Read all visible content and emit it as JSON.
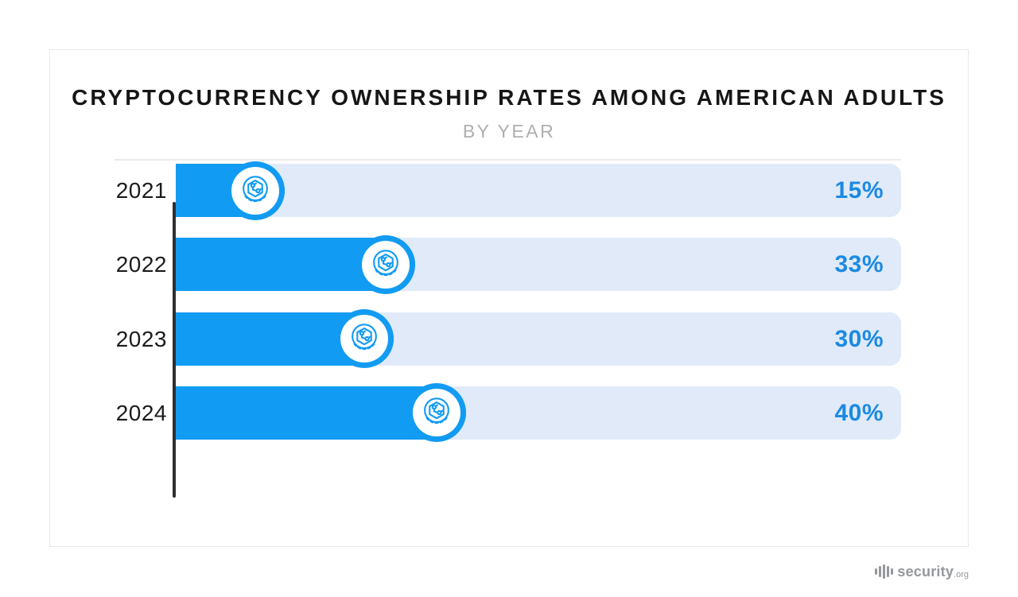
{
  "chart_data": {
    "type": "bar",
    "orientation": "horizontal",
    "title": "CRYPTOCURRENCY OWNERSHIP RATES AMONG AMERICAN ADULTS",
    "subtitle": "BY YEAR",
    "categories": [
      "2021",
      "2022",
      "2023",
      "2024"
    ],
    "values": [
      15,
      33,
      30,
      40
    ],
    "value_labels": [
      "15%",
      "33%",
      "30%",
      "40%"
    ],
    "xlim": [
      0,
      100
    ],
    "grid": false,
    "legend": false,
    "bar_icon": "crypto-coin-icon",
    "colors": {
      "bar_fill": "#129BF2",
      "bar_track": "#E0EAF9",
      "value_label": "#1B8AE2",
      "axis_line": "#2F2F2F",
      "year_label": "#1C1C1C",
      "title": "#161616",
      "subtitle": "#AFAFAF",
      "divider": "#EAEAEA"
    }
  },
  "footer": {
    "brand": "security",
    "brand_suffix": ".org",
    "color": "#94979C"
  }
}
